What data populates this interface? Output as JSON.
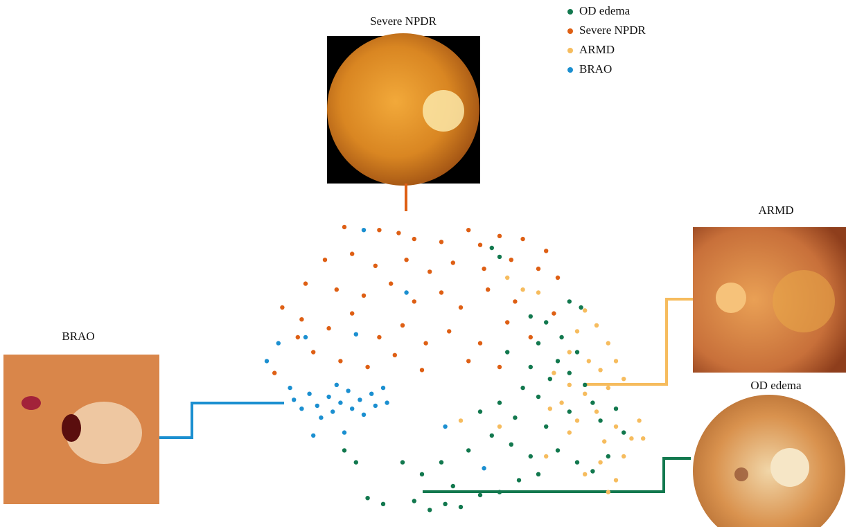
{
  "chart_data": {
    "type": "scatter",
    "xlim": [
      0,
      100
    ],
    "ylim": [
      0,
      100
    ],
    "annotations": [
      {
        "text": "Severe NPDR"
      },
      {
        "text": "ARMD"
      },
      {
        "text": "BRAO"
      },
      {
        "text": "OD edema"
      }
    ],
    "series": [
      {
        "name": "OD edema",
        "color": "#12784e",
        "x": [
          58,
          60,
          78,
          68,
          70,
          72,
          76,
          80,
          75,
          62,
          68,
          73,
          78,
          82,
          66,
          70,
          60,
          55,
          64,
          72,
          78,
          84,
          86,
          58,
          63,
          68,
          75,
          80,
          88,
          92,
          52,
          45,
          40,
          48,
          38,
          42,
          46,
          50,
          55,
          60,
          65,
          70,
          30,
          26,
          35,
          20,
          23,
          81,
          90,
          84
        ],
        "y": [
          90,
          87,
          72,
          67,
          58,
          65,
          60,
          55,
          52,
          55,
          50,
          46,
          48,
          44,
          43,
          40,
          38,
          35,
          33,
          30,
          35,
          38,
          32,
          27,
          24,
          20,
          22,
          18,
          20,
          28,
          22,
          18,
          14,
          10,
          5,
          2,
          4,
          3,
          7,
          8,
          12,
          14,
          4,
          6,
          18,
          22,
          18,
          70,
          36,
          15
        ]
      },
      {
        "name": "Severe NPDR",
        "color": "#de5f14",
        "x": [
          20,
          29,
          34,
          38,
          45,
          52,
          55,
          60,
          66,
          72,
          15,
          22,
          28,
          36,
          42,
          48,
          56,
          63,
          70,
          75,
          10,
          18,
          25,
          32,
          38,
          45,
          50,
          57,
          64,
          4,
          9,
          16,
          22,
          29,
          35,
          41,
          47,
          55,
          62,
          68,
          74,
          12,
          19,
          26,
          33,
          40,
          52,
          60,
          2,
          8
        ],
        "y": [
          97,
          96,
          95,
          93,
          92,
          96,
          91,
          94,
          93,
          89,
          86,
          88,
          84,
          86,
          82,
          85,
          83,
          86,
          83,
          80,
          78,
          76,
          74,
          78,
          72,
          75,
          70,
          76,
          72,
          70,
          66,
          63,
          68,
          60,
          64,
          58,
          62,
          58,
          65,
          60,
          68,
          55,
          52,
          50,
          54,
          49,
          52,
          50,
          48,
          60
        ]
      },
      {
        "name": "ARMD",
        "color": "#f6bc5e",
        "x": [
          62,
          66,
          70,
          82,
          85,
          80,
          88,
          78,
          83,
          86,
          90,
          74,
          78,
          82,
          88,
          92,
          76,
          80,
          85,
          90,
          94,
          97,
          87,
          92,
          86,
          82,
          90,
          78,
          73,
          50,
          60,
          72,
          88,
          96
        ],
        "y": [
          80,
          76,
          75,
          69,
          64,
          62,
          58,
          55,
          52,
          49,
          52,
          48,
          44,
          41,
          43,
          46,
          38,
          32,
          35,
          30,
          26,
          26,
          25,
          20,
          18,
          14,
          12,
          28,
          36,
          32,
          30,
          20,
          8,
          32
        ]
      },
      {
        "name": "BRAO",
        "color": "#1b8fd0",
        "x": [
          7,
          9,
          11,
          13,
          14,
          16,
          17,
          19,
          21,
          22,
          24,
          25,
          27,
          28,
          30,
          31,
          6,
          18,
          3,
          10,
          23,
          12,
          20,
          46,
          56,
          0,
          25,
          36
        ],
        "y": [
          39,
          36,
          41,
          37,
          33,
          40,
          35,
          38,
          42,
          36,
          39,
          34,
          41,
          37,
          43,
          38,
          43,
          44,
          58,
          60,
          61,
          27,
          28,
          30,
          16,
          52,
          96,
          75
        ]
      }
    ]
  }
}
